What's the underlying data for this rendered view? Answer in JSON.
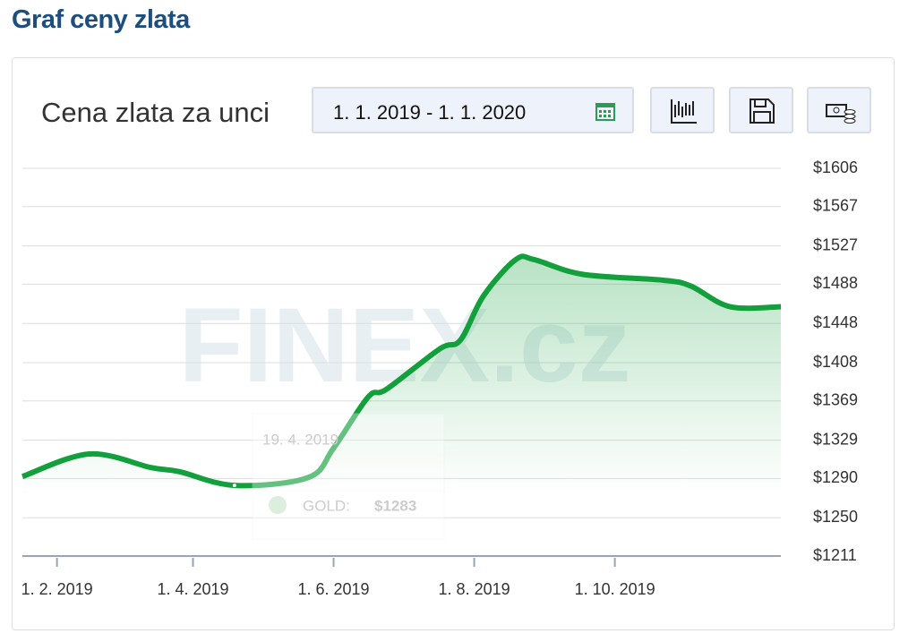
{
  "header": {
    "title": "Graf ceny zlata"
  },
  "card": {
    "title": "Cena zlata za unci",
    "date_range": "1. 1. 2019 - 1. 1. 2020",
    "watermark": "FINEX.cz"
  },
  "chart_data": {
    "type": "line",
    "x": [
      "2019-01-17",
      "2019-02-15",
      "2019-03-14",
      "2019-03-26",
      "2019-04-19",
      "2019-05-21",
      "2019-06-01",
      "2019-06-16",
      "2019-06-24",
      "2019-07-17",
      "2019-07-26",
      "2019-08-05",
      "2019-08-19",
      "2019-08-27",
      "2019-09-17",
      "2019-10-22",
      "2019-11-03",
      "2019-11-20",
      "2019-12-12"
    ],
    "series": [
      {
        "name": "GOLD:",
        "color": "#13a03c",
        "values": [
          1292,
          1315,
          1301,
          1297,
          1283,
          1291,
          1321,
          1373,
          1381,
          1422,
          1431,
          1476,
          1513,
          1513,
          1498,
          1492,
          1486,
          1465,
          1465
        ]
      }
    ],
    "xlim": [
      "2019-01-17",
      "2019-12-12"
    ],
    "xticks": [
      {
        "value": "2019-02-01",
        "label": "1. 2. 2019"
      },
      {
        "value": "2019-04-01",
        "label": "1. 4. 2019"
      },
      {
        "value": "2019-06-01",
        "label": "1. 6. 2019"
      },
      {
        "value": "2019-08-01",
        "label": "1. 8. 2019"
      },
      {
        "value": "2019-10-01",
        "label": "1. 10. 2019"
      }
    ],
    "ylim": [
      1211,
      1606
    ],
    "yticks": [
      {
        "value": 1211,
        "label": "$1211"
      },
      {
        "value": 1250,
        "label": "$1250"
      },
      {
        "value": 1290,
        "label": "$1290"
      },
      {
        "value": 1329,
        "label": "$1329"
      },
      {
        "value": 1369,
        "label": "$1369"
      },
      {
        "value": 1408,
        "label": "$1408"
      },
      {
        "value": 1448,
        "label": "$1448"
      },
      {
        "value": 1488,
        "label": "$1488"
      },
      {
        "value": 1527,
        "label": "$1527"
      },
      {
        "value": 1567,
        "label": "$1567"
      },
      {
        "value": 1606,
        "label": "$1606"
      }
    ],
    "grid": true,
    "tooltip": {
      "date": "19. 4. 2019",
      "value_label": "$1283"
    }
  }
}
